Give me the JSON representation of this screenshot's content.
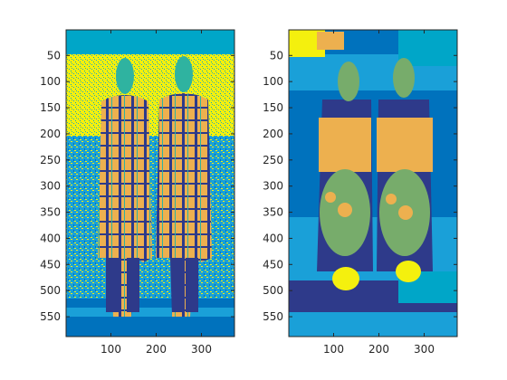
{
  "figure": {
    "background": "#ffffff",
    "palette": {
      "blue": "#0072bd",
      "navy": "#2e3a8a",
      "light_blue": "#1aa0d8",
      "cyan": "#00a6c8",
      "teal": "#2fb3a0",
      "green": "#77ac6b",
      "orange": "#edb04f",
      "yellow": "#f4f00e",
      "axis": "#262626"
    }
  },
  "chart_data": [
    {
      "type": "heatmap",
      "title": "",
      "xlabel": "",
      "ylabel": "",
      "xlim": [
        1,
        373
      ],
      "ylim": [
        1,
        588
      ],
      "y_reversed": true,
      "xticks": [
        100,
        200,
        300
      ],
      "yticks": [
        50,
        100,
        150,
        200,
        250,
        300,
        350,
        400,
        450,
        500,
        550
      ],
      "grid": false,
      "legend": "none",
      "description_of_image_content": [
        {
          "label": "figure-left",
          "x_range": [
            55,
            165
          ],
          "y_range": [
            60,
            560
          ],
          "color": "orange"
        },
        {
          "label": "figure-right",
          "x_range": [
            190,
            300
          ],
          "y_range": [
            60,
            560
          ],
          "color": "orange"
        }
      ]
    },
    {
      "type": "heatmap",
      "title": "",
      "xlabel": "",
      "ylabel": "",
      "xlim": [
        1,
        373
      ],
      "ylim": [
        1,
        588
      ],
      "y_reversed": true,
      "xticks": [
        100,
        200,
        300
      ],
      "yticks": [
        50,
        100,
        150,
        200,
        250,
        300,
        350,
        400,
        450,
        500,
        550
      ],
      "grid": false,
      "legend": "none"
    }
  ]
}
